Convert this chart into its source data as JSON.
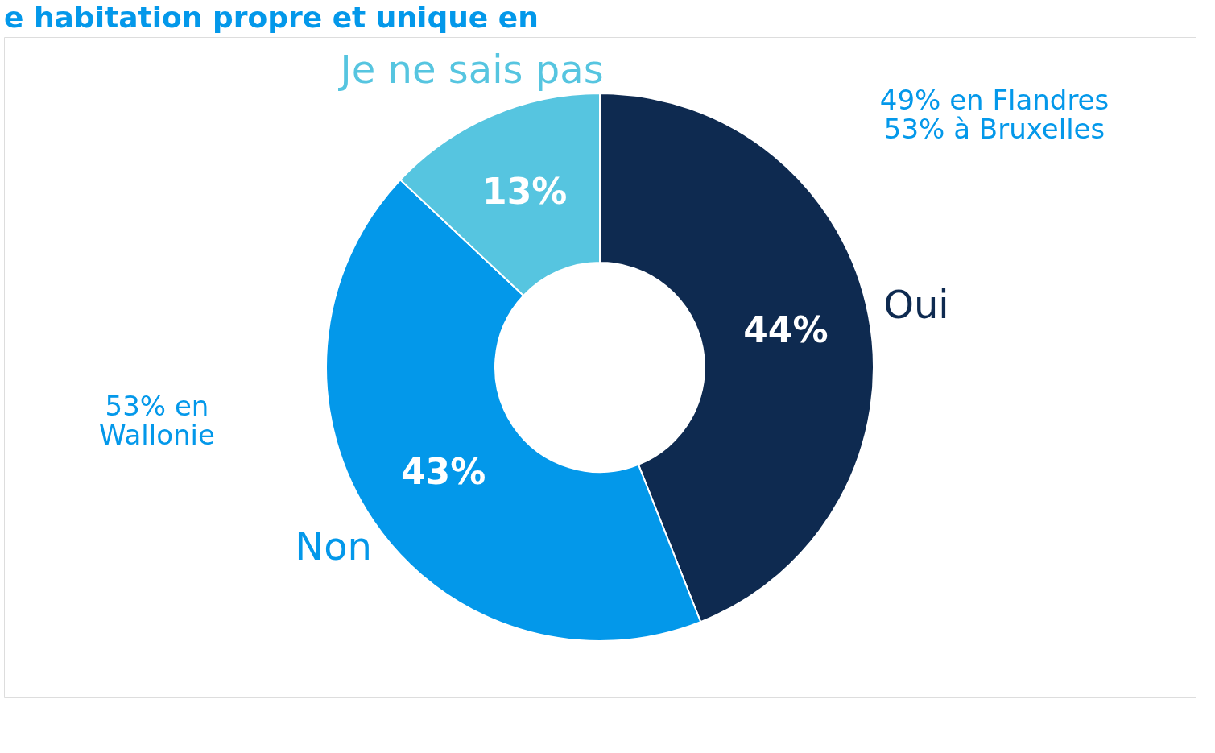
{
  "chart_data": {
    "type": "donut",
    "title": "e habitation propre et unique en",
    "categories": [
      "Oui",
      "Non",
      "Je ne sais pas"
    ],
    "values": [
      44,
      43,
      13
    ],
    "colors": [
      "#0e2a50",
      "#0398ea",
      "#56c5e0"
    ],
    "value_labels": [
      "44%",
      "43%",
      "13%"
    ],
    "annotations": [
      "49% en Flandres\n53% à Bruxelles",
      "53% en\nWallonie"
    ]
  }
}
